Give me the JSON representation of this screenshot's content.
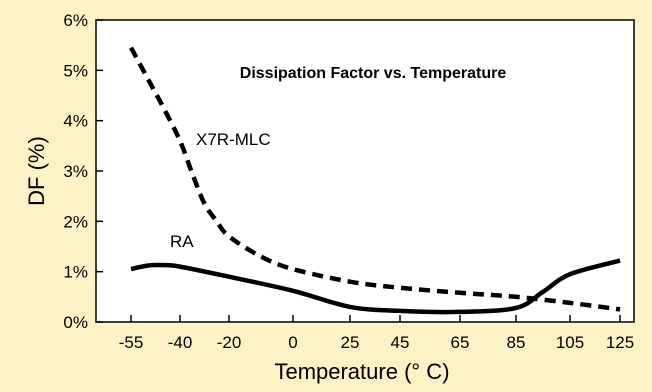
{
  "colors": {
    "background": "#fdf1c6",
    "plot_background": "#ffffff",
    "line": "#000000"
  },
  "chart_data": {
    "type": "line",
    "title": "Dissipation Factor vs. Temperature",
    "xlabel": "Temperature (° C)",
    "ylabel": "DF (%)",
    "x_ticks": [
      "-55",
      "-40",
      "-20",
      "0",
      "25",
      "45",
      "65",
      "85",
      "105",
      "125"
    ],
    "y_ticks": [
      "0%",
      "1%",
      "2%",
      "3%",
      "4%",
      "5%",
      "6%"
    ],
    "ylim": [
      0,
      6
    ],
    "grid": false,
    "series": [
      {
        "name": "X7R-MLC",
        "style": "dashed",
        "x": [
          "-55",
          "-50",
          "-45",
          "-40",
          "-35",
          "-30",
          "-25",
          "-20",
          "-10",
          "0",
          "25",
          "45",
          "65",
          "85",
          "105",
          "125"
        ],
        "values": [
          5.45,
          4.85,
          4.25,
          3.6,
          2.95,
          2.35,
          2.0,
          1.7,
          1.3,
          1.05,
          0.8,
          0.68,
          0.58,
          0.5,
          0.38,
          0.25
        ]
      },
      {
        "name": "RA",
        "style": "solid",
        "x": [
          "-55",
          "-50",
          "-45",
          "-40",
          "-20",
          "0",
          "25",
          "45",
          "65",
          "85",
          "95",
          "105",
          "125"
        ],
        "values": [
          1.05,
          1.12,
          1.13,
          1.1,
          0.9,
          0.62,
          0.3,
          0.22,
          0.2,
          0.28,
          0.6,
          0.95,
          1.22
        ]
      }
    ]
  }
}
